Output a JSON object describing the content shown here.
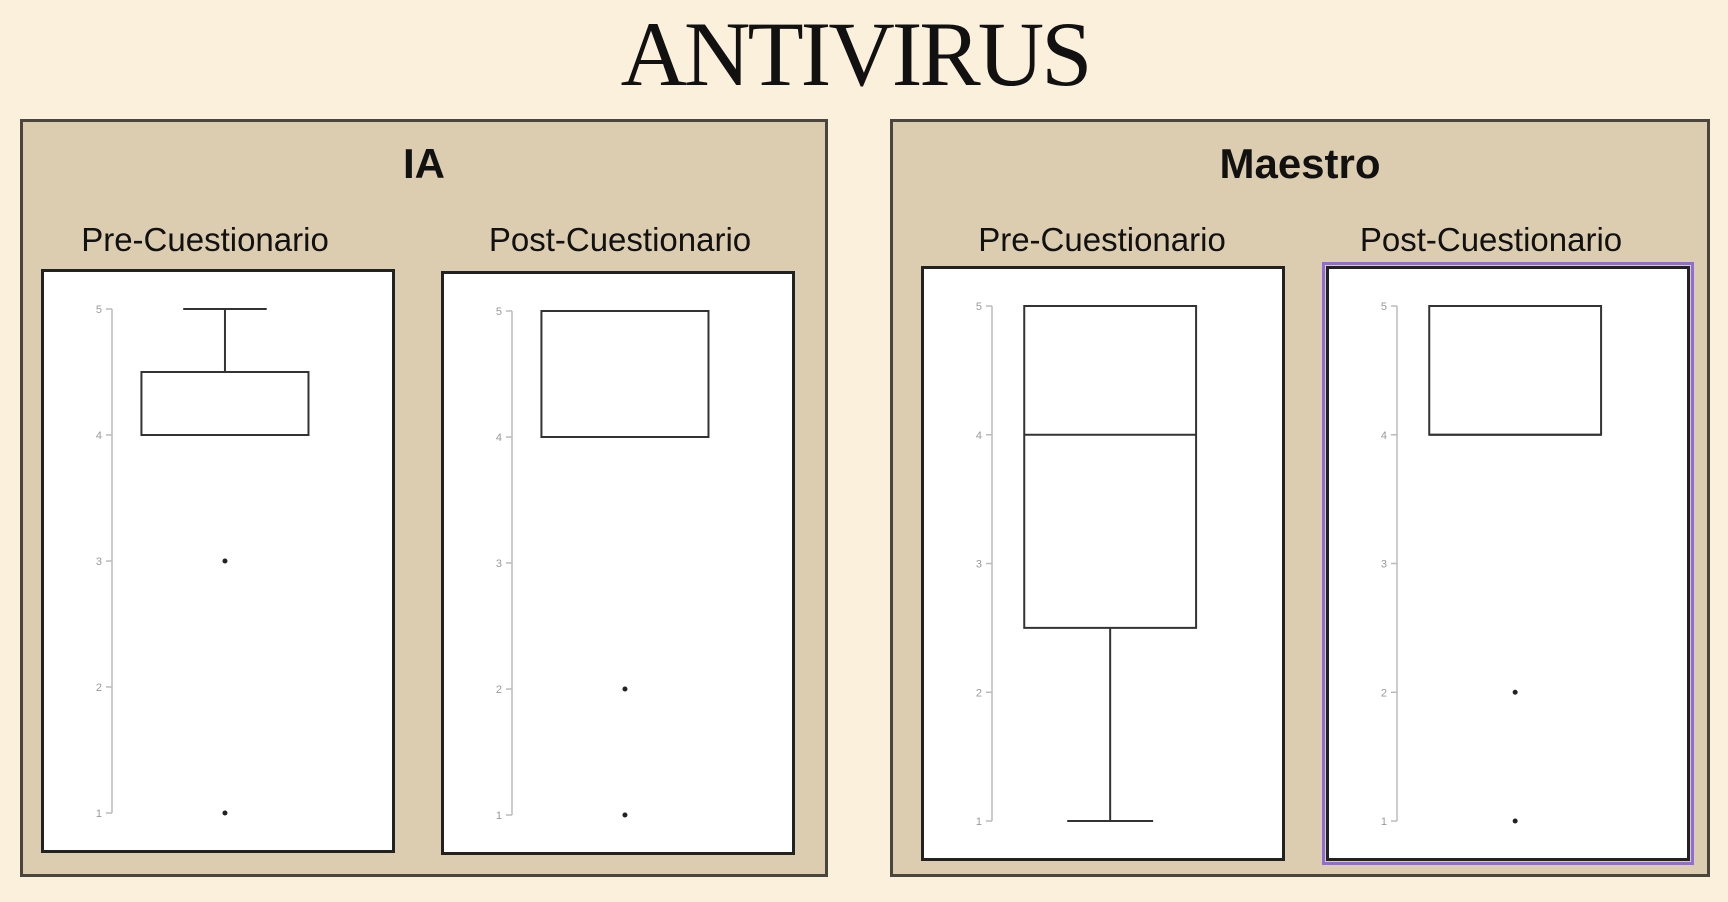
{
  "page": {
    "title": "ANTIVIRUS"
  },
  "panels": [
    {
      "title": "IA",
      "charts": [
        {
          "label": "Pre-Cuestionario"
        },
        {
          "label": "Post-Cuestionario"
        }
      ]
    },
    {
      "title": "Maestro",
      "charts": [
        {
          "label": "Pre-Cuestionario"
        },
        {
          "label": "Post-Cuestionario"
        }
      ]
    }
  ],
  "chart_data": [
    {
      "type": "box",
      "title": "Pre-Cuestionario",
      "ylim": [
        1,
        5
      ],
      "yticks": [
        1,
        2,
        3,
        4,
        5
      ],
      "box": {
        "whisker_low": 4,
        "q1": 4,
        "median": 4,
        "q3": 4.5,
        "whisker_high": 5
      },
      "outliers": [
        3,
        1
      ],
      "grid": false
    },
    {
      "type": "box",
      "title": "Post-Cuestionario",
      "ylim": [
        1,
        5
      ],
      "yticks": [
        1,
        2,
        3,
        4,
        5
      ],
      "box": {
        "whisker_low": 4,
        "q1": 4,
        "median": 4,
        "q3": 5,
        "whisker_high": 5
      },
      "outliers": [
        2,
        1
      ],
      "grid": false
    },
    {
      "type": "box",
      "title": "Pre-Cuestionario",
      "ylim": [
        1,
        5
      ],
      "yticks": [
        1,
        2,
        3,
        4,
        5
      ],
      "box": {
        "whisker_low": 1,
        "q1": 2.5,
        "median": 4,
        "q3": 5,
        "whisker_high": 5
      },
      "outliers": [],
      "grid": false
    },
    {
      "type": "box",
      "title": "Post-Cuestionario",
      "ylim": [
        1,
        5
      ],
      "yticks": [
        1,
        2,
        3,
        4,
        5
      ],
      "box": {
        "whisker_low": 4,
        "q1": 4,
        "median": 4,
        "q3": 5,
        "whisker_high": 5
      },
      "outliers": [
        2,
        1
      ],
      "grid": false
    }
  ]
}
